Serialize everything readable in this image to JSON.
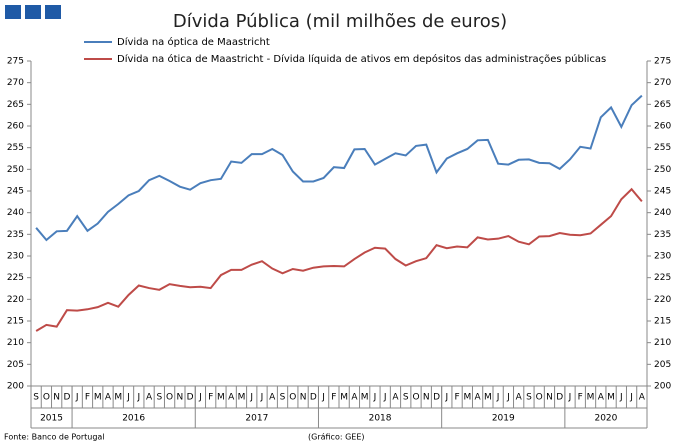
{
  "chart_data": {
    "type": "line",
    "title": "Dívida Pública (mil milhões de euros)",
    "category_groups": [
      {
        "label": "2015",
        "categories": [
          "S",
          "O",
          "N",
          "D"
        ]
      },
      {
        "label": "2016",
        "categories": [
          "J",
          "F",
          "M",
          "A",
          "M",
          "J",
          "J",
          "A",
          "S",
          "O",
          "N",
          "D"
        ]
      },
      {
        "label": "2017",
        "categories": [
          "J",
          "F",
          "M",
          "A",
          "M",
          "J",
          "J",
          "A",
          "S",
          "O",
          "N",
          "D"
        ]
      },
      {
        "label": "2018",
        "categories": [
          "J",
          "F",
          "M",
          "A",
          "M",
          "J",
          "J",
          "A",
          "S",
          "O",
          "N",
          "D"
        ]
      },
      {
        "label": "2019",
        "categories": [
          "J",
          "F",
          "M",
          "A",
          "M",
          "J",
          "J",
          "A",
          "S",
          "O",
          "N",
          "D"
        ]
      },
      {
        "label": "2020",
        "categories": [
          "J",
          "F",
          "M",
          "A",
          "M",
          "J",
          "J",
          "A"
        ]
      }
    ],
    "series": [
      {
        "name": "Dívida na óptica de Maastricht",
        "color": "#4a7ebb",
        "values": [
          236.5,
          233.7,
          235.7,
          235.8,
          239.2,
          235.8,
          237.5,
          240.2,
          242,
          244,
          245,
          247.5,
          248.5,
          247.3,
          246,
          245.3,
          246.8,
          247.5,
          247.8,
          251.8,
          251.5,
          253.5,
          253.5,
          254.7,
          253.3,
          249.5,
          247.2,
          247.2,
          248,
          250.5,
          250.3,
          254.6,
          254.7,
          251.1,
          252.4,
          253.7,
          253.2,
          255.4,
          255.7,
          249.3,
          252.5,
          253.7,
          254.7,
          256.7,
          256.8,
          251.3,
          251.1,
          252.2,
          252.3,
          251.5,
          251.4,
          250.1,
          252.3,
          255.2,
          254.8,
          262,
          264.3,
          259.8,
          264.8,
          267
        ]
      },
      {
        "name": "Dívida na ótica de Maastricht - Dívida líquida de ativos em depósitos das administrações públicas",
        "color": "#be4b48",
        "values": [
          212.7,
          214.1,
          213.7,
          217.5,
          217.4,
          217.7,
          218.2,
          219.2,
          218.3,
          221,
          223.2,
          222.6,
          222.2,
          223.5,
          223.1,
          222.8,
          222.9,
          222.6,
          225.6,
          226.8,
          226.8,
          228,
          228.8,
          227.1,
          226,
          227,
          226.6,
          227.3,
          227.6,
          227.7,
          227.6,
          229.3,
          230.8,
          231.9,
          231.7,
          229.3,
          227.8,
          228.8,
          229.5,
          232.5,
          231.8,
          232.2,
          232,
          234.3,
          233.8,
          234,
          234.6,
          233.3,
          232.7,
          234.5,
          234.6,
          235.3,
          234.9,
          234.8,
          235.2,
          237.2,
          239.2,
          243.1,
          245.4,
          242.6
        ]
      }
    ],
    "ylim": [
      200,
      275
    ],
    "yticks": [
      200,
      205,
      210,
      215,
      220,
      225,
      230,
      235,
      240,
      245,
      250,
      255,
      260,
      265,
      270,
      275
    ],
    "right_axis_mirror": true,
    "source": "Fonte: Banco de Portugal",
    "credit": "(Gráfico: GEE)"
  }
}
